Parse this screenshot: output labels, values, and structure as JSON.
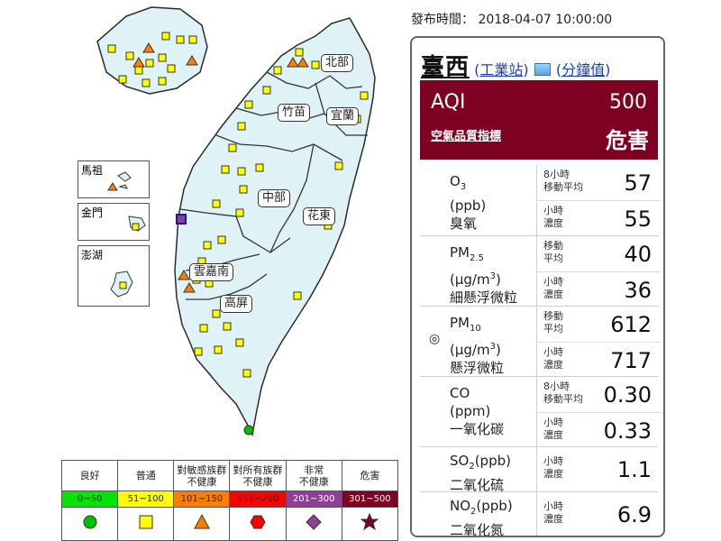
{
  "publish_time": "發布時間： 2018-04-07 10:00:00",
  "map": {
    "regions": [
      "北部",
      "竹苗",
      "宜蘭",
      "中部",
      "花東",
      "雲嘉南",
      "高屏"
    ],
    "insets": [
      "馬祖",
      "金門",
      "澎湖"
    ],
    "colors": {
      "land": "#dff3f7",
      "outline": "#2b2b2b",
      "boundary": "#333333",
      "normal_station": "#ffff00",
      "sensitive_station": "#ff7e00",
      "good_station": "#00c000",
      "highlight_station": "#8f3f97"
    }
  },
  "legend": {
    "levels": [
      {
        "name": "良好",
        "range": "0~50",
        "color": "#00e400",
        "symbol": "circle-icon"
      },
      {
        "name": "普通",
        "range": "51~100",
        "color": "#ffff00",
        "symbol": "square-icon"
      },
      {
        "name": "對敏感族群\n不健康",
        "range": "101~150",
        "color": "#ff7e00",
        "symbol": "triangle-icon"
      },
      {
        "name": "對所有族群\n不健康",
        "range": "151~200",
        "color": "#ff0000",
        "symbol": "hexagon-icon"
      },
      {
        "name": "非常\n不健康",
        "range": "201~300",
        "color": "#8f3f97",
        "symbol": "diamond-icon"
      },
      {
        "name": "危害",
        "range": "301~500",
        "color": "#7e0023",
        "symbol": "star-icon"
      }
    ]
  },
  "panel": {
    "station": "臺西",
    "link_industrial": "工業站",
    "link_minute": "分鐘值",
    "aqi_label": "AQI",
    "aqi_value": "500",
    "aqi_index_label": "空氣品質指標",
    "aqi_status": "危害",
    "aqi_color": "#7e0023",
    "pollutants": [
      {
        "key": "o3",
        "formula_main": "O",
        "formula_sub": "3",
        "unit": "(ppb)",
        "name": "臭氧",
        "readings": [
          {
            "label": "8小時\n移動平均",
            "value": "57"
          },
          {
            "label": "小時\n濃度",
            "value": "55"
          }
        ]
      },
      {
        "key": "pm25",
        "formula_main": "PM",
        "formula_sub": "2.5",
        "unit_main": "(μg/m",
        "unit_sup": "3",
        "unit_end": ")",
        "name": "細懸浮微粒",
        "readings": [
          {
            "label": "移動\n平均",
            "value": "40"
          },
          {
            "label": "小時\n濃度",
            "value": "36"
          }
        ]
      },
      {
        "key": "pm10",
        "formula_main": "PM",
        "formula_sub": "10",
        "unit_main": "(μg/m",
        "unit_sup": "3",
        "unit_end": ")",
        "name": "懸浮微粒",
        "marker": "◎",
        "readings": [
          {
            "label": "移動\n平均",
            "value": "612"
          },
          {
            "label": "小時\n濃度",
            "value": "717"
          }
        ]
      },
      {
        "key": "co",
        "formula_main": "CO",
        "unit": "(ppm)",
        "name": "一氧化碳",
        "readings": [
          {
            "label": "8小時\n移動平均",
            "value": "0.30"
          },
          {
            "label": "小時\n濃度",
            "value": "0.33"
          }
        ]
      },
      {
        "key": "so2",
        "formula_main": "SO",
        "formula_sub": "2",
        "formula_end": "(ppb)",
        "name": "二氧化硫",
        "readings": [
          {
            "label": "小時\n濃度",
            "value": "1.1"
          }
        ]
      },
      {
        "key": "no2",
        "formula_main": "NO",
        "formula_sub": "2",
        "formula_end": "(ppb)",
        "name": "二氧化氮",
        "readings": [
          {
            "label": "小時\n濃度",
            "value": "6.9"
          }
        ]
      }
    ]
  }
}
